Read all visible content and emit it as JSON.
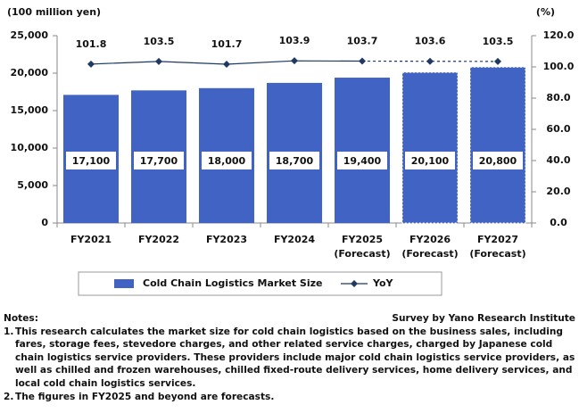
{
  "chart_data": {
    "type": "bar",
    "y_axis_label": "(100 million yen)",
    "y2_axis_label": "(%)",
    "categories": [
      "FY2021",
      "FY2022",
      "FY2023",
      "FY2024",
      "FY2025\n(Forecast)",
      "FY2026\n(Forecast)",
      "FY2027\n(Forecast)"
    ],
    "series": [
      {
        "name": "Cold Chain Logistics Market Size",
        "type": "bar",
        "color": "#4164c4",
        "values": [
          17100,
          17700,
          18000,
          18700,
          19400,
          20100,
          20800
        ],
        "value_labels": [
          "17,100",
          "17,700",
          "18,000",
          "18,700",
          "19,400",
          "20,100",
          "20,800"
        ],
        "dashed_outline_from": 5
      },
      {
        "name": "YoY",
        "type": "line",
        "axis": "y2",
        "color": "#1f3864",
        "values": [
          101.8,
          103.5,
          101.7,
          103.9,
          103.7,
          103.6,
          103.5
        ],
        "dashed_from": 4
      }
    ],
    "ylim": [
      0,
      25000
    ],
    "yticks": [
      0,
      {
        "value": 5000,
        "label": "5,000"
      },
      {
        "value": 10000,
        "label": "10,000"
      },
      {
        "value": 15000,
        "label": "15,000"
      },
      {
        "value": 20000,
        "label": "20,000"
      },
      {
        "value": 25000,
        "label": "25,000"
      }
    ],
    "y2lim": [
      0,
      120
    ],
    "y2ticks": [
      {
        "value": 0,
        "label": "0.0"
      },
      {
        "value": 20,
        "label": "20.0"
      },
      {
        "value": 40,
        "label": "40.0"
      },
      {
        "value": 60,
        "label": "60.0"
      },
      {
        "value": 80,
        "label": "80.0"
      },
      {
        "value": 100,
        "label": "100.0"
      },
      {
        "value": 120,
        "label": "120.0"
      }
    ],
    "grid": false,
    "legend": "bottom"
  },
  "notes": {
    "heading": "Notes:",
    "source": "Survey by Yano Research Institute",
    "items": [
      {
        "number": "1.",
        "text": "This research calculates the market size for cold chain logistics based on the business sales, including fares, storage fees, stevedore charges, and other related service charges, charged by Japanese cold chain logistics service providers. These providers include major cold chain logistics service providers, as well as chilled and frozen warehouses, chilled fixed-route delivery services, home delivery services, and local cold chain logistics services."
      },
      {
        "number": "2.",
        "text": "The figures in FY2025 and beyond are forecasts."
      }
    ]
  }
}
